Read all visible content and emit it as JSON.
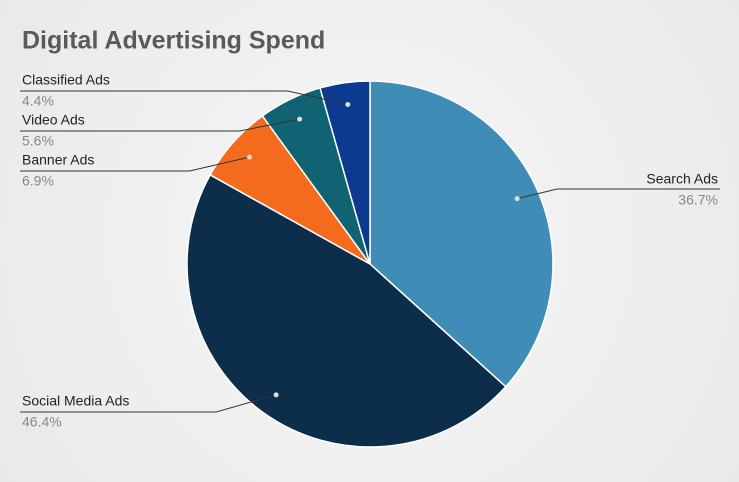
{
  "chart_data": {
    "type": "pie",
    "title": "Digital Advertising Spend",
    "categories": [
      "Search Ads",
      "Social Media Ads",
      "Banner Ads",
      "Video Ads",
      "Classified Ads"
    ],
    "values": [
      36.7,
      46.4,
      6.9,
      5.6,
      4.4
    ],
    "value_labels": [
      "36.7%",
      "46.4%",
      "6.9%",
      "5.6%",
      "4.4%"
    ],
    "colors": [
      "#3f8db6",
      "#0d2e4b",
      "#f46b1e",
      "#0f6373",
      "#0c3a90"
    ]
  }
}
